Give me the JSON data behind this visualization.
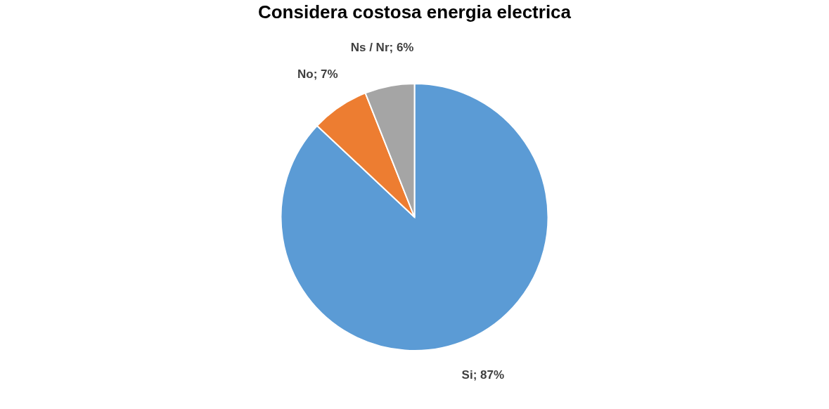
{
  "chart_data": {
    "type": "pie",
    "title": "Considera costosa energia electrica",
    "categories": [
      "Si",
      "No",
      "Ns / Nr"
    ],
    "values": [
      87,
      7,
      6
    ],
    "colors": [
      "#5b9bd5",
      "#ed7d31",
      "#a5a5a5"
    ],
    "value_labels": [
      "87%",
      "7%",
      "6%"
    ],
    "legend": false
  }
}
